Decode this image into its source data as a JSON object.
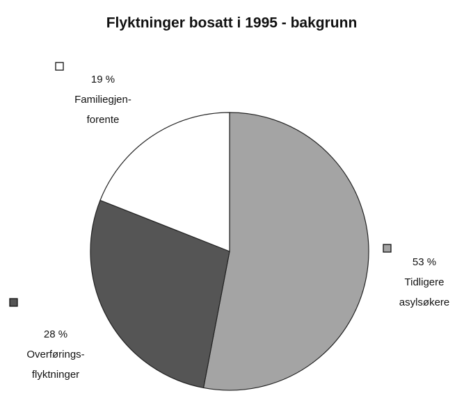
{
  "chart_data": {
    "type": "pie",
    "title": "Flyktninger bosatt i 1995 - bakgrunn",
    "categories": [
      [
        "Tidligere",
        "asylsøkere"
      ],
      [
        "Overførings-",
        "flyktninger"
      ],
      [
        "Familiegjen-",
        "forente"
      ]
    ],
    "values": [
      53,
      28,
      19
    ],
    "value_labels": [
      "53 %",
      "28 %",
      "19 %"
    ],
    "colors": [
      "#a4a4a4",
      "#555555",
      "#ffffff"
    ]
  }
}
